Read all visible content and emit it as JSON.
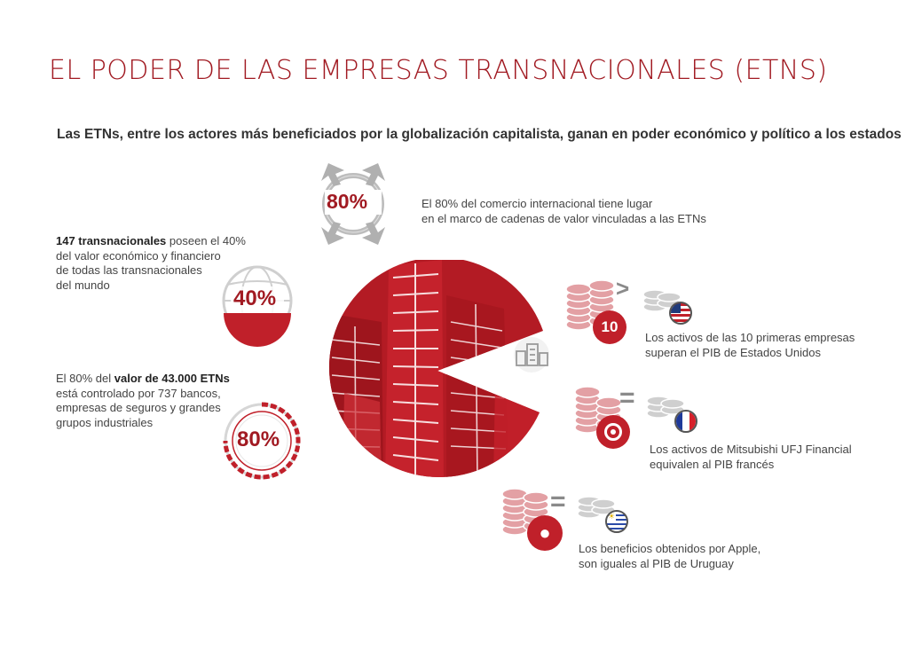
{
  "title": "EL PODER DE LAS EMPRESAS TRANSNACIONALES (ETNS)",
  "subtitle": "Las ETNs, entre los actores más beneficiados por la globalización capitalista,  ganan en poder económico y político a los estados",
  "facts": {
    "trade": {
      "percent": "80%",
      "line1": "El 80% del comercio internacional tiene lugar",
      "line2": "en el marco de cadenas de valor vinculadas a las ETNs"
    },
    "ownership": {
      "percent": "40%",
      "bold": "147 transnacionales",
      "line1_rest": " poseen el 40%",
      "line2": " del valor económico y financiero",
      "line3": "de todas las transnacionales",
      "line4": "del mundo"
    },
    "control": {
      "percent": "80%",
      "line1_start": "El 80% del ",
      "bold": "valor de 43.000 ETNs",
      "line2": "está controlado por 737 bancos,",
      "line3": "empresas de seguros y grandes",
      "line4": "grupos industriales"
    }
  },
  "comparisons": [
    {
      "symbol": ">",
      "badge": "10",
      "flag": "usa",
      "line1": "Los activos de las 10 primeras empresas",
      "line2": "superan el PIB de Estados Unidos"
    },
    {
      "symbol": "=",
      "badge": "mufg",
      "flag": "france",
      "line1": "Los activos de Mitsubishi UFJ Financial",
      "line2": "equivalen al PIB francés"
    },
    {
      "symbol": "=",
      "badge": "apple",
      "flag": "uruguay",
      "line1": "Los beneficios obtenidos por Apple,",
      "line2": "son iguales al PIB de Uruguay"
    }
  ],
  "colors": {
    "accent": "#c0202a",
    "dark_accent": "#a11a22",
    "grey": "#b9b9b9"
  }
}
